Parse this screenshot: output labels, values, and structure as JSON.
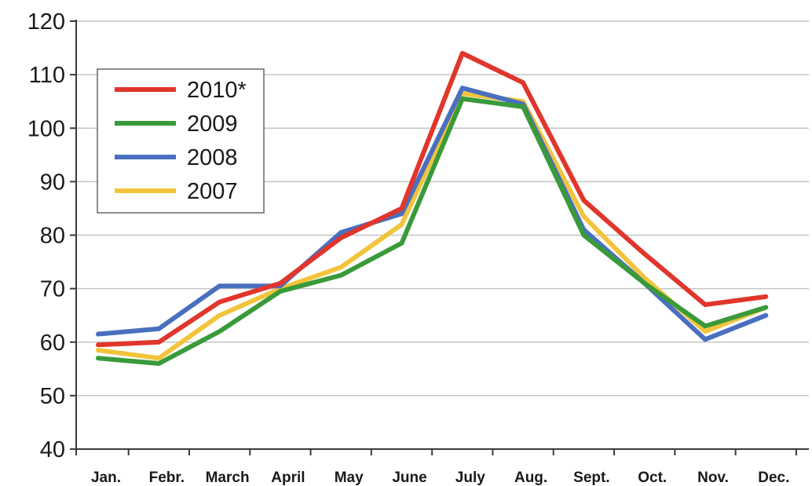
{
  "chart_data": {
    "type": "line",
    "categories": [
      "Jan.",
      "Febr.",
      "March",
      "April",
      "May",
      "June",
      "July",
      "Aug.",
      "Sept.",
      "Oct.",
      "Nov.",
      "Dec."
    ],
    "series": [
      {
        "name": "2010*",
        "color": "#e0362b",
        "values": [
          59.5,
          60,
          67.5,
          71,
          79.5,
          85,
          114,
          108.5,
          86.5,
          76.5,
          67,
          68.5
        ]
      },
      {
        "name": "2009",
        "color": "#3a9a3a",
        "values": [
          57,
          56,
          62,
          69.5,
          72.5,
          78.5,
          105.5,
          104,
          80,
          71,
          63,
          66.5
        ]
      },
      {
        "name": "2008",
        "color": "#4a6fbf",
        "values": [
          61.5,
          62.5,
          70.5,
          70.5,
          80.5,
          84,
          107.5,
          104.5,
          81,
          71,
          60.5,
          65
        ]
      },
      {
        "name": "2007",
        "color": "#f2c43c",
        "values": [
          58.5,
          57,
          65,
          70,
          74,
          82,
          106.5,
          105,
          83.5,
          72,
          62,
          66.5
        ]
      }
    ],
    "yticks": [
      40,
      50,
      60,
      70,
      80,
      90,
      100,
      110,
      120
    ],
    "ylim": [
      40,
      120
    ],
    "title": "",
    "xlabel": "",
    "ylabel": "",
    "grid": true,
    "legend": "top-left"
  }
}
